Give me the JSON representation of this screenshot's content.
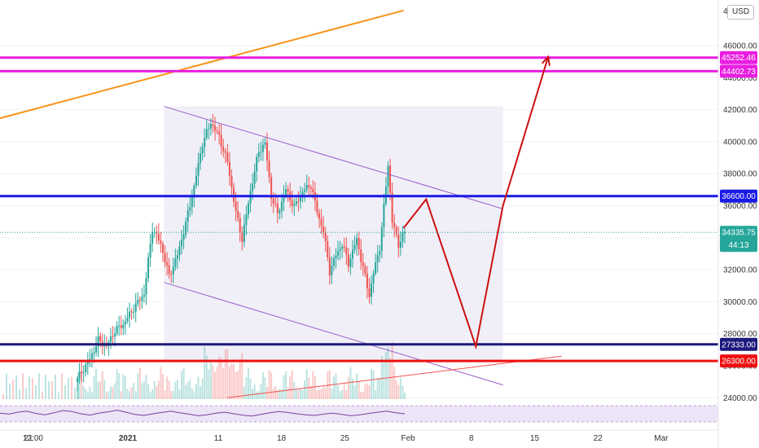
{
  "currency_badge": "USD",
  "corner_top_label": "480",
  "countdown": "44:13",
  "colors": {
    "candle_up": "#26a69a",
    "candle_down": "#ef5350",
    "channel_line": "#9c5bc7",
    "channel_fill": "#ecebf6",
    "trendline": "#f7931a",
    "magenta": "#e91ee0",
    "blue": "#1a1ae6",
    "navy": "#1c1a7c",
    "red": "#ee1111",
    "projection": "#cc1010",
    "rsi": "#7b3fa0",
    "rsi_band": "#ede4f7",
    "price_tag": "#26a69a"
  },
  "chart_data": {
    "type": "candlestick",
    "ylim": [
      23500,
      48000
    ],
    "x_ticks": [
      "21",
      "12:00",
      "2021",
      "11",
      "18",
      "25",
      "Feb",
      "8",
      "15",
      "22",
      "Mar"
    ],
    "y_ticks": [
      "24000.00",
      "26000.00",
      "28000.00",
      "30000.00",
      "32000.00",
      "34000.00",
      "36000.00",
      "38000.00",
      "40000.00",
      "42000.00",
      "44000.00",
      "46000.00"
    ],
    "horizontal_levels": [
      {
        "label": "45252.46",
        "value": 45252.46,
        "color": "magenta"
      },
      {
        "label": "44402.73",
        "value": 44402.73,
        "color": "magenta"
      },
      {
        "label": "36600.00",
        "value": 36600.0,
        "color": "blue"
      },
      {
        "label": "27333.00",
        "value": 27333.0,
        "color": "navy"
      },
      {
        "label": "26300.00",
        "value": 26300.0,
        "color": "red"
      }
    ],
    "last_price": {
      "label": "34335.75",
      "value": 34335.75
    },
    "price_path": [
      [
        0,
        25200
      ],
      [
        6,
        26400
      ],
      [
        10,
        27600
      ],
      [
        14,
        27200
      ],
      [
        18,
        28200
      ],
      [
        22,
        28600
      ],
      [
        27,
        29600
      ],
      [
        32,
        30500
      ],
      [
        36,
        34600
      ],
      [
        40,
        33600
      ],
      [
        44,
        31600
      ],
      [
        48,
        32900
      ],
      [
        52,
        34900
      ],
      [
        56,
        37200
      ],
      [
        60,
        39900
      ],
      [
        64,
        41200
      ],
      [
        68,
        40300
      ],
      [
        72,
        38700
      ],
      [
        76,
        35600
      ],
      [
        79,
        33900
      ],
      [
        83,
        36900
      ],
      [
        87,
        39400
      ],
      [
        90,
        39900
      ],
      [
        93,
        36600
      ],
      [
        96,
        35500
      ],
      [
        100,
        37000
      ],
      [
        104,
        35900
      ],
      [
        108,
        36900
      ],
      [
        112,
        37300
      ],
      [
        115,
        35600
      ],
      [
        118,
        34400
      ],
      [
        121,
        31900
      ],
      [
        124,
        32900
      ],
      [
        127,
        33600
      ],
      [
        130,
        32400
      ],
      [
        134,
        33900
      ],
      [
        137,
        32100
      ],
      [
        140,
        30400
      ],
      [
        142,
        31800
      ],
      [
        145,
        33400
      ],
      [
        147,
        35900
      ],
      [
        149,
        38600
      ],
      [
        151,
        35000
      ],
      [
        154,
        33600
      ],
      [
        157,
        34336
      ]
    ],
    "channel": {
      "upper": [
        [
          4.0,
          42200
        ],
        [
          41.5,
          35800
        ]
      ],
      "lower": [
        [
          4.0,
          31200
        ],
        [
          41.5,
          24800
        ]
      ]
    },
    "trendline": [
      [
        -26.5,
        39600
      ],
      [
        30.5,
        48200
      ]
    ],
    "support_line": [
      [
        11.0,
        24000
      ],
      [
        48.0,
        26600
      ]
    ],
    "projection": [
      [
        30.5,
        34600
      ],
      [
        33.0,
        36400
      ],
      [
        38.5,
        27200
      ],
      [
        41.5,
        36000
      ],
      [
        46.5,
        45300
      ]
    ],
    "rsi": [
      52,
      49,
      55,
      58,
      51,
      47,
      53,
      60,
      57,
      50,
      46,
      52,
      56,
      61,
      55,
      48,
      45,
      50,
      54,
      58,
      53,
      49,
      44,
      47,
      52,
      55,
      50,
      46,
      43,
      48,
      53,
      57,
      54,
      50,
      47,
      45,
      49,
      52,
      48,
      44,
      47,
      51,
      55,
      58,
      53,
      50
    ]
  }
}
